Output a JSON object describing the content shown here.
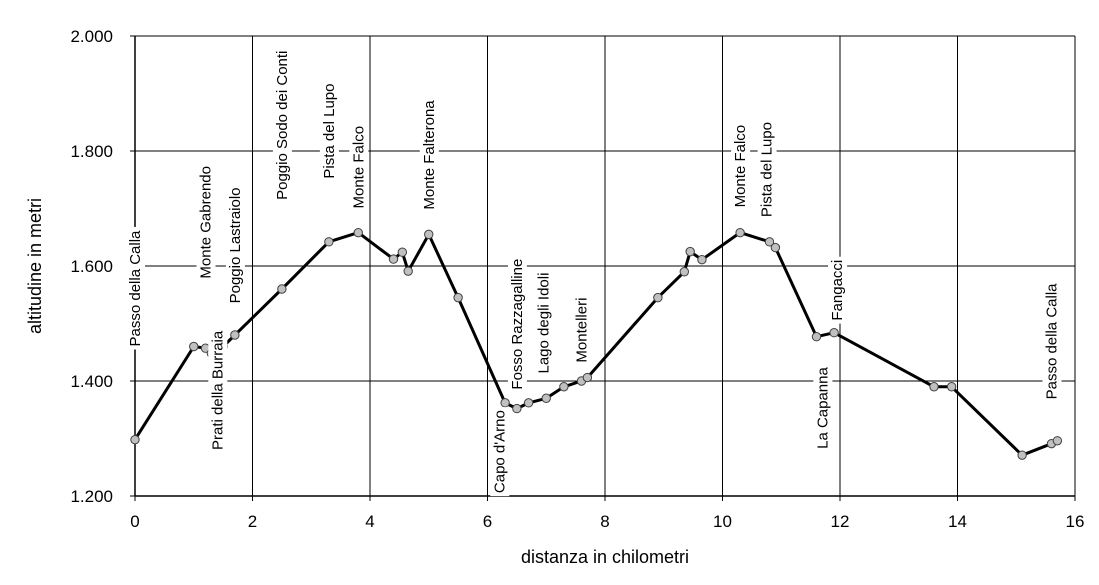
{
  "chart_data": {
    "type": "line",
    "xlabel": "distanza in chilometri",
    "ylabel": "altitudine  in metri",
    "xlim": [
      0,
      16
    ],
    "ylim": [
      1200,
      2000
    ],
    "x_ticks": [
      0,
      2,
      4,
      6,
      8,
      10,
      12,
      14,
      16
    ],
    "x_tick_labels": [
      "0",
      "2",
      "4",
      "6",
      "8",
      "10",
      "12",
      "14",
      "16"
    ],
    "y_ticks": [
      1200,
      1400,
      1600,
      1800,
      2000
    ],
    "y_tick_labels": [
      "1.200",
      "1.400",
      "1.600",
      "1.800",
      "2.000"
    ],
    "grid": true,
    "series": [
      {
        "points": [
          {
            "x": 0.0,
            "y": 1298
          },
          {
            "x": 1.0,
            "y": 1460
          },
          {
            "x": 1.2,
            "y": 1457
          },
          {
            "x": 1.3,
            "y": 1448
          },
          {
            "x": 1.5,
            "y": 1460
          },
          {
            "x": 1.7,
            "y": 1480
          },
          {
            "x": 2.5,
            "y": 1560
          },
          {
            "x": 3.3,
            "y": 1642
          },
          {
            "x": 3.8,
            "y": 1658
          },
          {
            "x": 4.4,
            "y": 1612
          },
          {
            "x": 4.55,
            "y": 1624
          },
          {
            "x": 4.65,
            "y": 1591
          },
          {
            "x": 5.0,
            "y": 1655
          },
          {
            "x": 5.5,
            "y": 1545
          },
          {
            "x": 6.3,
            "y": 1362
          },
          {
            "x": 6.5,
            "y": 1352
          },
          {
            "x": 6.7,
            "y": 1362
          },
          {
            "x": 7.0,
            "y": 1370
          },
          {
            "x": 7.3,
            "y": 1390
          },
          {
            "x": 7.6,
            "y": 1400
          },
          {
            "x": 7.7,
            "y": 1406
          },
          {
            "x": 8.9,
            "y": 1545
          },
          {
            "x": 9.35,
            "y": 1590
          },
          {
            "x": 9.45,
            "y": 1625
          },
          {
            "x": 9.65,
            "y": 1611
          },
          {
            "x": 10.3,
            "y": 1658
          },
          {
            "x": 10.8,
            "y": 1642
          },
          {
            "x": 10.9,
            "y": 1632
          },
          {
            "x": 11.6,
            "y": 1477
          },
          {
            "x": 11.9,
            "y": 1484
          },
          {
            "x": 13.6,
            "y": 1390
          },
          {
            "x": 13.9,
            "y": 1390
          },
          {
            "x": 15.1,
            "y": 1271
          },
          {
            "x": 15.6,
            "y": 1291
          },
          {
            "x": 15.7,
            "y": 1296
          }
        ]
      }
    ],
    "annotations": [
      {
        "text": "Passo della Calla",
        "x": 0.0,
        "y": 1460
      },
      {
        "text": "Monte Gabrendo",
        "x": 1.2,
        "y": 1578
      },
      {
        "text": "Prati della Burraia",
        "x": 1.4,
        "y": 1280
      },
      {
        "text": "Poggio Lastraiolo",
        "x": 1.7,
        "y": 1535
      },
      {
        "text": "Poggio Sodo dei Conti",
        "x": 2.5,
        "y": 1715
      },
      {
        "text": "Pista del Lupo",
        "x": 3.3,
        "y": 1752
      },
      {
        "text": "Monte Falco",
        "x": 3.8,
        "y": 1700
      },
      {
        "text": "Monte Falterona",
        "x": 5.0,
        "y": 1698
      },
      {
        "text": "Capo d'Arno",
        "x": 6.2,
        "y": 1205
      },
      {
        "text": "Fosso Razzagalline",
        "x": 6.5,
        "y": 1385
      },
      {
        "text": "Lago degli Idoli",
        "x": 6.95,
        "y": 1413
      },
      {
        "text": "Montelleri",
        "x": 7.6,
        "y": 1432
      },
      {
        "text": "Monte Falco",
        "x": 10.3,
        "y": 1702
      },
      {
        "text": "Pista del Lupo",
        "x": 10.75,
        "y": 1685
      },
      {
        "text": "Fangacci",
        "x": 11.95,
        "y": 1505
      },
      {
        "text": "La Capanna",
        "x": 11.7,
        "y": 1282
      },
      {
        "text": "Passo della Calla",
        "x": 15.6,
        "y": 1368
      }
    ],
    "colors": {
      "line": "#000000",
      "marker_fill": "#c0c0c0",
      "marker_stroke": "#404040",
      "grid": "#000000",
      "background": "#ffffff"
    }
  }
}
